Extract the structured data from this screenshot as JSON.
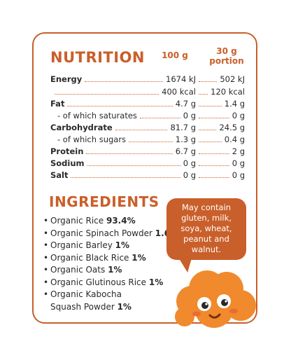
{
  "nutrition": {
    "title": "NUTRITION",
    "col_100g": "100 g",
    "col_30g_line1": "30 g",
    "col_30g_line2": "portion",
    "rows": [
      {
        "name": "Energy",
        "v100": "1674 kJ",
        "v30": "502 kJ"
      },
      {
        "name": "",
        "v100": "400 kcal",
        "v30": "120 kcal"
      },
      {
        "name": "Fat",
        "v100": "4.7 g",
        "v30": "1.4 g"
      },
      {
        "name": "- of which saturates",
        "v100": "0 g",
        "v30": "0 g"
      },
      {
        "name": "Carbohydrate",
        "v100": "81.7 g",
        "v30": "24.5 g"
      },
      {
        "name": "- of which sugars",
        "v100": "1.3 g",
        "v30": "0.4 g"
      },
      {
        "name": "Protein",
        "v100": "6.7 g",
        "v30": "2 g"
      },
      {
        "name": "Sodium",
        "v100": "0 g",
        "v30": "0 g"
      },
      {
        "name": "Salt",
        "v100": "0 g",
        "v30": "0 g"
      }
    ]
  },
  "ingredients": {
    "title": "INGREDIENTS",
    "items": [
      {
        "name": "Organic Rice ",
        "pct": "93.4%"
      },
      {
        "name": "Organic Spinach Powder ",
        "pct": "1.6%"
      },
      {
        "name": "Organic Barley ",
        "pct": "1%"
      },
      {
        "name": "Organic Black Rice ",
        "pct": "1%"
      },
      {
        "name": "Organic Oats ",
        "pct": "1%"
      },
      {
        "name": "Organic Glutinous Rice ",
        "pct": "1%"
      },
      {
        "name": "Organic Kabocha",
        "pct": ""
      },
      {
        "name": "Squash Powder ",
        "pct": "1%"
      }
    ]
  },
  "allergen_note": "May contain gluten, milk, soya, wheat, peanut and walnut.",
  "colors": {
    "accent": "#c95f2a",
    "mascot": "#f08a2c"
  },
  "mascot_icon": "smiling-cloud-mascot"
}
